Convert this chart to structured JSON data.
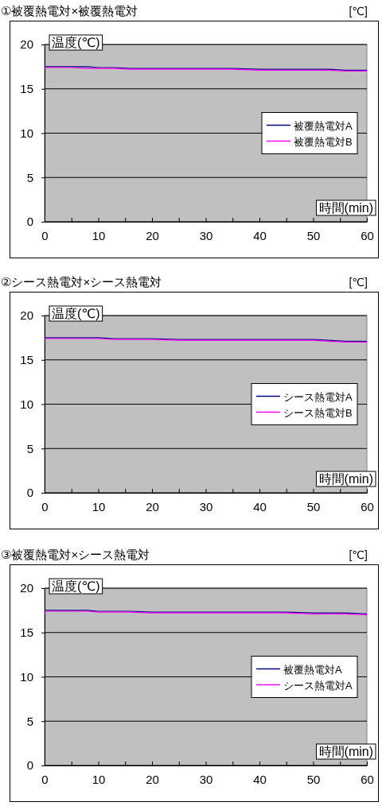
{
  "chart_data": [
    {
      "type": "line",
      "title": "①被覆熱電対×被覆熱電対",
      "ylabel": "温度(℃)",
      "xlabel": "時間(min)",
      "annotations": [
        "[℃]"
      ],
      "x": [
        0,
        2,
        5,
        8,
        10,
        13,
        16,
        20,
        25,
        30,
        35,
        40,
        45,
        50,
        53,
        56,
        60
      ],
      "series": [
        {
          "name": "被覆熱電対A",
          "color": "#000080",
          "values": [
            17.5,
            17.5,
            17.5,
            17.5,
            17.4,
            17.4,
            17.3,
            17.3,
            17.3,
            17.3,
            17.3,
            17.2,
            17.2,
            17.2,
            17.2,
            17.1,
            17.1
          ]
        },
        {
          "name": "被覆熱電対B",
          "color": "#ff00ff",
          "values": [
            17.4,
            17.4,
            17.4,
            17.3,
            17.3,
            17.3,
            17.2,
            17.2,
            17.2,
            17.2,
            17.2,
            17.1,
            17.1,
            17.1,
            17.1,
            17.0,
            17.0
          ]
        }
      ],
      "xlim": [
        0,
        60
      ],
      "xticks": [
        0,
        {
          "value": 5,
          "label": null
        },
        10,
        {
          "value": 15,
          "label": null
        },
        20,
        {
          "value": 25,
          "label": null
        },
        30,
        {
          "value": 35,
          "label": null
        },
        40,
        {
          "value": 45,
          "label": null
        },
        50,
        {
          "value": 55,
          "label": null
        },
        60
      ],
      "ylim": [
        0,
        20
      ],
      "yticks": [
        0,
        5,
        10,
        15,
        20
      ],
      "grid": "y",
      "legend": "right"
    },
    {
      "type": "line",
      "title": "②シース熱電対×シース熱電対",
      "ylabel": "温度(℃)",
      "xlabel": "時間(min)",
      "annotations": [
        "[℃]"
      ],
      "x": [
        0,
        2,
        5,
        8,
        10,
        13,
        16,
        20,
        25,
        30,
        35,
        40,
        45,
        50,
        53,
        56,
        60
      ],
      "series": [
        {
          "name": "シース熱電対A",
          "color": "#000080",
          "values": [
            17.5,
            17.5,
            17.5,
            17.5,
            17.5,
            17.4,
            17.4,
            17.4,
            17.3,
            17.3,
            17.3,
            17.3,
            17.3,
            17.3,
            17.2,
            17.1,
            17.1
          ]
        },
        {
          "name": "シース熱電対B",
          "color": "#ff00ff",
          "values": [
            17.4,
            17.4,
            17.4,
            17.4,
            17.4,
            17.3,
            17.3,
            17.3,
            17.2,
            17.2,
            17.2,
            17.2,
            17.2,
            17.2,
            17.1,
            17.0,
            17.0
          ]
        }
      ],
      "xlim": [
        0,
        60
      ],
      "xticks": [
        0,
        {
          "value": 5,
          "label": null
        },
        10,
        {
          "value": 15,
          "label": null
        },
        20,
        {
          "value": 25,
          "label": null
        },
        30,
        {
          "value": 35,
          "label": null
        },
        40,
        {
          "value": 45,
          "label": null
        },
        50,
        {
          "value": 55,
          "label": null
        },
        60
      ],
      "ylim": [
        0,
        20
      ],
      "yticks": [
        0,
        5,
        10,
        15,
        20
      ],
      "grid": "y",
      "legend": "right"
    },
    {
      "type": "line",
      "title": "③被覆熱電対×シース熱電対",
      "ylabel": "温度(℃)",
      "xlabel": "時間(min)",
      "annotations": [
        "[℃]"
      ],
      "x": [
        0,
        2,
        5,
        8,
        10,
        13,
        16,
        20,
        25,
        30,
        35,
        40,
        45,
        50,
        53,
        56,
        60
      ],
      "series": [
        {
          "name": "被覆熱電対A",
          "color": "#000080",
          "values": [
            17.5,
            17.5,
            17.5,
            17.5,
            17.4,
            17.4,
            17.4,
            17.3,
            17.3,
            17.3,
            17.3,
            17.3,
            17.3,
            17.2,
            17.2,
            17.2,
            17.1
          ]
        },
        {
          "name": "シース熱電対A",
          "color": "#ff00ff",
          "values": [
            17.4,
            17.4,
            17.4,
            17.4,
            17.3,
            17.3,
            17.3,
            17.2,
            17.2,
            17.2,
            17.2,
            17.2,
            17.2,
            17.1,
            17.1,
            17.1,
            17.0
          ]
        }
      ],
      "xlim": [
        0,
        60
      ],
      "xticks": [
        0,
        {
          "value": 5,
          "label": null
        },
        10,
        {
          "value": 15,
          "label": null
        },
        20,
        {
          "value": 25,
          "label": null
        },
        30,
        {
          "value": 35,
          "label": null
        },
        40,
        {
          "value": 45,
          "label": null
        },
        50,
        {
          "value": 55,
          "label": null
        },
        60
      ],
      "ylim": [
        0,
        20
      ],
      "yticks": [
        0,
        5,
        10,
        15,
        20
      ],
      "grid": "y",
      "legend": "right"
    }
  ]
}
